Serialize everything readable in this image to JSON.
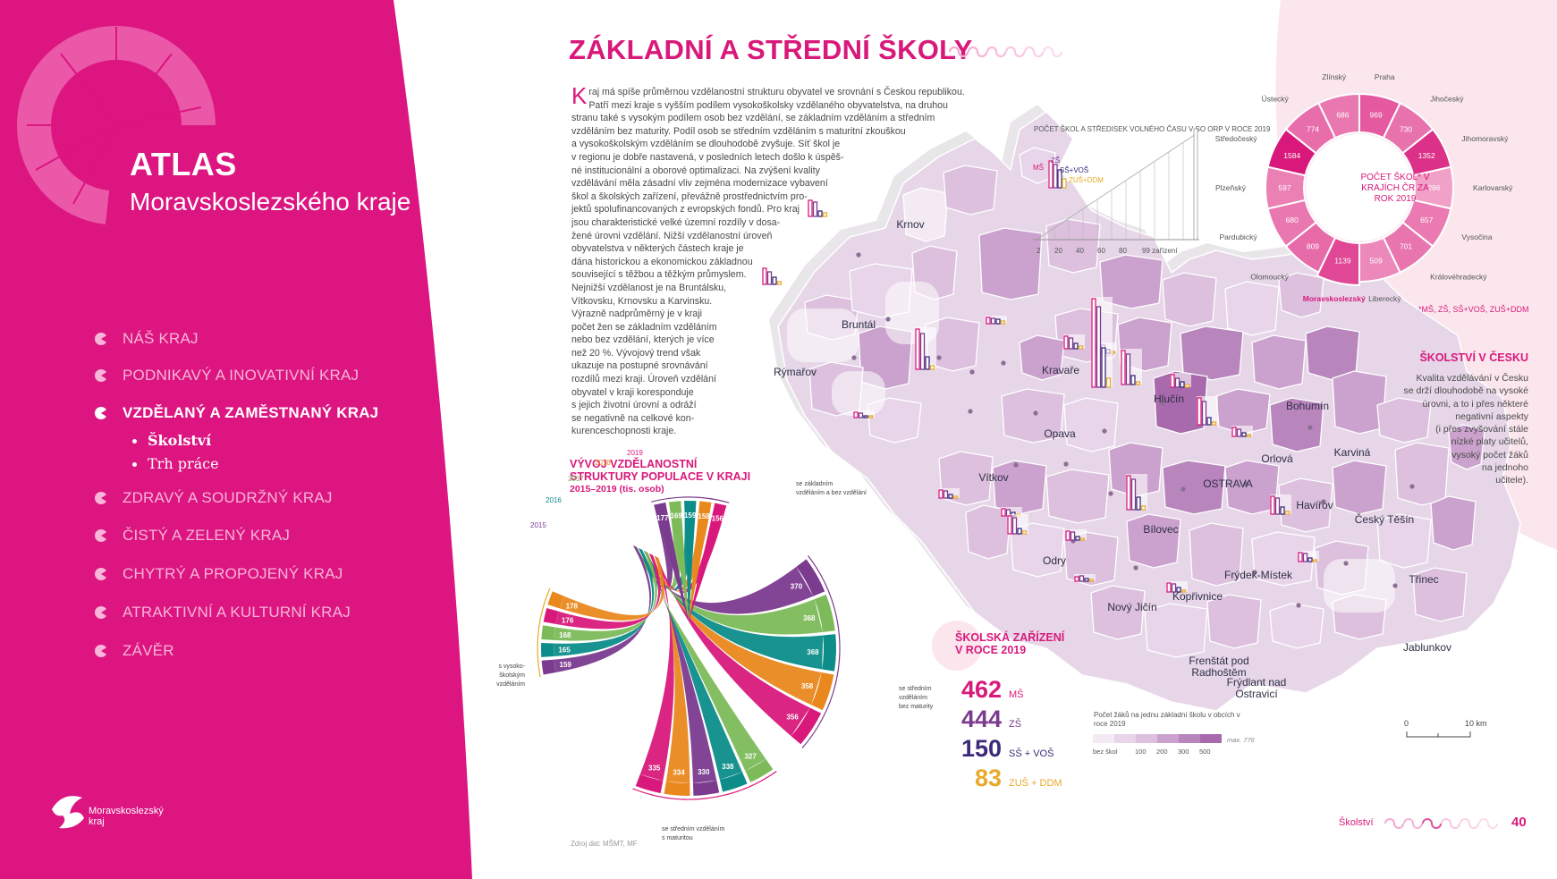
{
  "sidebar": {
    "title": "ATLAS",
    "subtitle": "Moravskoslezského kraje",
    "nav": [
      {
        "label": "NÁŠ KRAJ",
        "active": false
      },
      {
        "label": "PODNIKAVÝ A INOVATIVNÍ KRAJ",
        "active": false
      },
      {
        "label": "VZDĚLANÝ A ZAMĚSTNANÝ KRAJ",
        "active": true
      },
      {
        "label": "ZDRAVÝ A SOUDRŽNÝ KRAJ",
        "active": false
      },
      {
        "label": "ČISTÝ A ZELENÝ KRAJ",
        "active": false
      },
      {
        "label": "CHYTRÝ A PROPOJENÝ KRAJ",
        "active": false
      },
      {
        "label": "ATRAKTIVNÍ A KULTURNÍ KRAJ",
        "active": false
      },
      {
        "label": "ZÁVĚR",
        "active": false
      }
    ],
    "subnav": [
      {
        "label": "Školství",
        "active": true
      },
      {
        "label": "Trh práce",
        "active": false
      }
    ],
    "logo_line1": "Moravskoslezský",
    "logo_line2": "kraj"
  },
  "page": {
    "title": "ZÁKLADNÍ A STŘEDNÍ ŠKOLY",
    "footer_section": "Školství",
    "page_number": "40",
    "source": "Zdroj dat: MŠMT, MF"
  },
  "intro_lines": [
    "raj má spíše průměrnou vzdělanostní strukturu obyvatel ve srovnání s Českou republikou.",
    "Patří mezi kraje s vyšším podílem vysokoškolsky vzdělaného obyvatelstva, na druhou",
    "stranu také s vysokým podílem osob bez vzdělání, se základním vzděláním a středním",
    "vzděláním bez maturity. Podíl osob se středním vzděláním s maturitní zkouškou",
    "a vysokoškolským vzděláním se dlouhodobě zvyšuje. Síť škol je",
    "v regionu je dobře nastavená, v posledních letech došlo k úspěš-",
    "né institucionální a oborové optimalizaci. Na zvýšení kvality",
    "vzdělávání měla zásadní vliv zejména modernizace vybavení",
    "škol a školských zařízení, převážně prostřednictvím pro-",
    "jektů spolufinancovaných z evropských fondů. Pro kraj",
    "jsou charakteristické velké územní rozdíly v dosa-",
    "žené úrovni vzdělání. Nižší vzdělanostní úroveň",
    "obyvatelstva v některých částech kraje je",
    "dána historickou a ekonomickou základnou",
    "související s těžbou a těžkým průmyslem.",
    "Nejnižší vzdělanost je na Bruntálsku,",
    "Vítkovsku, Krnovsku a Karvinsku.",
    "Výrazně nadprůměrný je v kraji",
    "počet žen se základním vzděláním",
    "nebo bez vzdělání, kterých je více",
    "než 20 %. Vývojový trend však",
    "ukazuje na postupné srovnávání",
    "rozdílů mezi kraji. Úroveň vzdělání",
    "obyvatel v kraji koresponduje",
    "s jejich životní úrovní a odráží",
    "se negativně na celkové kon-",
    "kurenceschopnosti kraje."
  ],
  "intro_dropcap": "K",
  "colors": {
    "magenta": "#d8197b",
    "purple": "#7b3b8f",
    "teal": "#0d8d8a",
    "green": "#7dbb5a",
    "orange": "#e9881d",
    "navy": "#3d2a7a",
    "gold": "#e8a92a"
  },
  "edu_chart": {
    "title_lines": [
      "VÝVOJ VZDĚLANOSTNÍ",
      "STRUKTURY POPULACE V KRAJI",
      "2015–2019 (tis. osob)"
    ],
    "years": [
      "2015",
      "2016",
      "2017",
      "2018",
      "2019"
    ],
    "groups": [
      "s vysoko-školským vzděláním",
      "se základním vzděláním a bez vzdělání",
      "se středním vzděláním bez maturity",
      "se středním vzděláním s maturitou"
    ],
    "label_vs": [
      "s vysoko-",
      "školským",
      "vzděláním"
    ],
    "label_zs": [
      "se základním",
      "vzděláním a bez vzdělání"
    ],
    "label_sbm": [
      "se středním",
      "vzděláním",
      "bez maturity"
    ],
    "label_ssm": [
      "se středním vzděláním",
      "s maturitou"
    ],
    "vs_values": [
      "159",
      "165",
      "168",
      "176",
      "178"
    ],
    "zs_values": [
      "177",
      "169",
      "159",
      "158",
      "156"
    ],
    "sbm_values": [
      "370",
      "368",
      "368",
      "358",
      "356"
    ],
    "ssm_values": [
      "327",
      "338",
      "330",
      "334",
      "335"
    ]
  },
  "chart_data": [
    {
      "type": "table",
      "title": "ŠKOLSKÁ ZAŘÍZENÍ V ROCE 2019",
      "rows": [
        {
          "value": 462,
          "label": "MŠ"
        },
        {
          "value": 444,
          "label": "ZŠ"
        },
        {
          "value": 150,
          "label": "SŠ + VOŠ"
        },
        {
          "value": 83,
          "label": "ZUŠ + DDM"
        }
      ]
    },
    {
      "type": "pie",
      "title": "POČET ŠKOL* V KRAJÍCH ČR ZA ROK 2019",
      "categories": [
        "Praha",
        "Jihočeský",
        "Jihomoravský",
        "Karlovarský",
        "Vysočina",
        "Královéhradecký",
        "Liberecký",
        "Moravskoslezský",
        "Olomoucký",
        "Pardubický",
        "Plzeňský",
        "Středočeský",
        "Ústecký",
        "Zlínský"
      ],
      "values": [
        969,
        730,
        1352,
        286,
        657,
        701,
        509,
        1139,
        809,
        680,
        597,
        1584,
        774,
        686
      ]
    },
    {
      "type": "bar",
      "title": "POČET ŠKOL A STŘEDISEK VOLNÉHO ČASU V SO ORP V ROCE 2019",
      "series": [
        {
          "name": "MŠ"
        },
        {
          "name": "ZŠ"
        },
        {
          "name": "SŠ+VOŠ"
        },
        {
          "name": "ZUŠ+DDM"
        }
      ],
      "x_ticks": [
        "2",
        "20",
        "40",
        "60",
        "80",
        "99 zařízení"
      ]
    }
  ],
  "map": {
    "legend_title": "Počet žáků na jednu základní školu v obcích v roce 2019",
    "legend_values": [
      "bez škol",
      "100",
      "200",
      "300",
      "500"
    ],
    "legend_max": "max. 776",
    "scale_zero": "0",
    "scale_label": "10 km",
    "towns": [
      {
        "name": "Krnov"
      },
      {
        "name": "Bruntál"
      },
      {
        "name": "Rýmařov"
      },
      {
        "name": "Kravaře"
      },
      {
        "name": "Hlučín"
      },
      {
        "name": "Opava"
      },
      {
        "name": "Bohumín"
      },
      {
        "name": "Orlová"
      },
      {
        "name": "Karviná"
      },
      {
        "name": "OSTRAVA"
      },
      {
        "name": "Havířov"
      },
      {
        "name": "Český Těšín"
      },
      {
        "name": "Vítkov"
      },
      {
        "name": "Bílovec"
      },
      {
        "name": "Odry"
      },
      {
        "name": "Frýdek-Místek"
      },
      {
        "name": "Nový Jičín"
      },
      {
        "name": "Kopřivnice"
      },
      {
        "name": "Třinec"
      },
      {
        "name": "Jablunkov"
      },
      {
        "name": "Frenštát pod Radhoštěm"
      },
      {
        "name": "Frýdlant nad Ostravicí"
      }
    ]
  },
  "czech_box": {
    "title": "ŠKOLSTVÍ V ČESKU",
    "lines": [
      "Kvalita vzdělávání v Česku",
      "se drží dlouhodobě na vysoké",
      "úrovni, a to i přes některé",
      "negativní aspekty",
      "(i přes zvyšování stále",
      "nízké platy učitelů,",
      "vysoký počet žáků",
      "na jednoho",
      "učitele)."
    ],
    "footnote": "*MŠ, ZŠ, SŠ+VOŠ, ZUŠ+DDM"
  }
}
